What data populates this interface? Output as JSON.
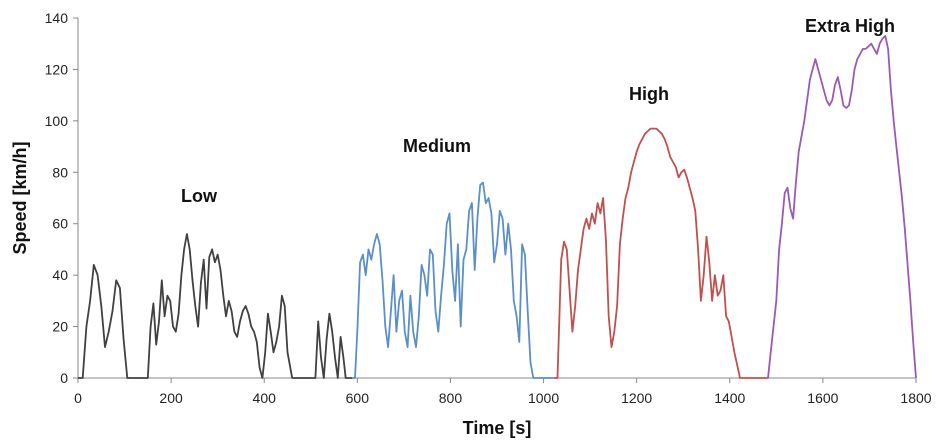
{
  "chart_data": {
    "type": "line",
    "xlabel": "Time [s]",
    "ylabel": "Speed [km/h]",
    "xlim": [
      0,
      1800
    ],
    "ylim": [
      0,
      140
    ],
    "xticks": [
      0,
      200,
      400,
      600,
      800,
      1000,
      1200,
      1400,
      1600,
      1800
    ],
    "yticks": [
      0,
      20,
      40,
      60,
      80,
      100,
      120,
      140
    ],
    "grid": false,
    "legend": "none",
    "series": [
      {
        "name": "Low",
        "color": "#404040",
        "x": [
          0,
          10,
          18,
          26,
          34,
          42,
          50,
          58,
          66,
          74,
          82,
          90,
          98,
          106,
          115,
          125,
          135,
          145,
          150,
          156,
          162,
          168,
          174,
          180,
          186,
          192,
          198,
          204,
          210,
          216,
          222,
          228,
          234,
          240,
          246,
          252,
          258,
          264,
          270,
          276,
          282,
          288,
          294,
          300,
          306,
          312,
          318,
          324,
          330,
          336,
          342,
          348,
          354,
          360,
          366,
          372,
          378,
          384,
          390,
          396,
          402,
          408,
          414,
          420,
          426,
          432,
          438,
          444,
          450,
          460,
          470,
          480,
          490,
          500,
          510,
          516,
          522,
          528,
          534,
          540,
          546,
          552,
          558,
          564,
          570,
          575,
          580,
          589
        ],
        "y": [
          0,
          0,
          20,
          30,
          44,
          40,
          28,
          12,
          18,
          26,
          38,
          35,
          15,
          0,
          0,
          0,
          0,
          0,
          0,
          20,
          29,
          13,
          22,
          38,
          24,
          32,
          30,
          20,
          18,
          25,
          40,
          50,
          56,
          50,
          38,
          28,
          20,
          37,
          46,
          27,
          47,
          50,
          45,
          48,
          42,
          32,
          24,
          30,
          26,
          18,
          16,
          22,
          26,
          28,
          25,
          20,
          18,
          14,
          4,
          0,
          10,
          25,
          18,
          10,
          14,
          20,
          32,
          28,
          10,
          0,
          0,
          0,
          0,
          0,
          0,
          22,
          8,
          0,
          15,
          25,
          18,
          8,
          0,
          16,
          8,
          0,
          0,
          0
        ]
      },
      {
        "name": "Medium",
        "color": "#5b8fc9",
        "x": [
          589,
          595,
          600,
          606,
          612,
          618,
          624,
          630,
          636,
          642,
          648,
          654,
          660,
          666,
          672,
          678,
          684,
          690,
          696,
          702,
          708,
          714,
          720,
          726,
          732,
          738,
          744,
          750,
          756,
          762,
          768,
          774,
          780,
          786,
          792,
          798,
          804,
          810,
          816,
          822,
          828,
          834,
          840,
          846,
          852,
          858,
          864,
          870,
          876,
          882,
          888,
          894,
          900,
          906,
          912,
          918,
          924,
          930,
          936,
          942,
          948,
          954,
          960,
          966,
          972,
          978,
          984,
          990,
          1000,
          1010,
          1022
        ],
        "y": [
          0,
          0,
          18,
          45,
          48,
          40,
          50,
          46,
          52,
          56,
          52,
          38,
          20,
          12,
          26,
          40,
          18,
          30,
          34,
          18,
          12,
          32,
          18,
          12,
          24,
          44,
          40,
          32,
          50,
          48,
          26,
          18,
          32,
          44,
          60,
          64,
          42,
          30,
          52,
          20,
          46,
          50,
          65,
          68,
          42,
          62,
          75,
          76,
          68,
          70,
          64,
          45,
          52,
          65,
          62,
          48,
          60,
          50,
          30,
          24,
          14,
          52,
          48,
          26,
          6,
          0,
          0,
          0,
          0,
          0,
          0
        ],
        "label_pos": [
          865,
          60
        ]
      },
      {
        "name": "High",
        "color": "#c0504d",
        "x": [
          1022,
          1030,
          1038,
          1044,
          1050,
          1056,
          1062,
          1068,
          1074,
          1080,
          1086,
          1092,
          1098,
          1104,
          1110,
          1116,
          1122,
          1128,
          1134,
          1140,
          1146,
          1152,
          1158,
          1164,
          1170,
          1176,
          1182,
          1188,
          1194,
          1200,
          1206,
          1212,
          1218,
          1224,
          1230,
          1236,
          1242,
          1248,
          1254,
          1260,
          1266,
          1272,
          1278,
          1284,
          1290,
          1296,
          1302,
          1308,
          1314,
          1320,
          1326,
          1332,
          1338,
          1344,
          1350,
          1356,
          1362,
          1368,
          1374,
          1380,
          1386,
          1392,
          1398,
          1404,
          1410,
          1416,
          1422,
          1428,
          1434,
          1440,
          1446,
          1452,
          1460,
          1470,
          1477
        ],
        "y": [
          0,
          0,
          46,
          53,
          50,
          34,
          18,
          28,
          42,
          50,
          58,
          62,
          58,
          64,
          60,
          68,
          64,
          70,
          54,
          24,
          12,
          18,
          28,
          52,
          62,
          70,
          74,
          80,
          84,
          88,
          91,
          93,
          95,
          96,
          97,
          97,
          97,
          96,
          95,
          93,
          90,
          86,
          84,
          82,
          78,
          80,
          81,
          78,
          74,
          70,
          65,
          50,
          30,
          40,
          55,
          45,
          30,
          40,
          32,
          34,
          40,
          24,
          22,
          16,
          10,
          5,
          0,
          0,
          0,
          0,
          0,
          0,
          0,
          0,
          0
        ]
      },
      {
        "name": "Extra High",
        "color": "#9b59b6",
        "x": [
          1477,
          1482,
          1488,
          1494,
          1500,
          1506,
          1512,
          1518,
          1524,
          1530,
          1536,
          1542,
          1548,
          1554,
          1560,
          1566,
          1572,
          1578,
          1584,
          1590,
          1596,
          1602,
          1608,
          1614,
          1620,
          1626,
          1632,
          1638,
          1644,
          1650,
          1656,
          1662,
          1668,
          1674,
          1680,
          1686,
          1692,
          1698,
          1704,
          1710,
          1716,
          1722,
          1728,
          1734,
          1740,
          1746,
          1752,
          1758,
          1764,
          1770,
          1776,
          1782,
          1788,
          1794,
          1800
        ],
        "y": [
          0,
          0,
          10,
          20,
          30,
          50,
          60,
          72,
          74,
          66,
          62,
          76,
          88,
          94,
          100,
          108,
          116,
          120,
          124,
          120,
          116,
          112,
          108,
          106,
          108,
          114,
          117,
          112,
          106,
          105,
          106,
          112,
          120,
          124,
          126,
          128,
          128,
          129,
          130,
          128,
          126,
          130,
          132,
          133,
          128,
          112,
          100,
          90,
          80,
          70,
          58,
          44,
          30,
          14,
          0
        ]
      }
    ],
    "phase_labels": [
      "Low",
      "Medium",
      "High",
      "Extra High"
    ]
  }
}
